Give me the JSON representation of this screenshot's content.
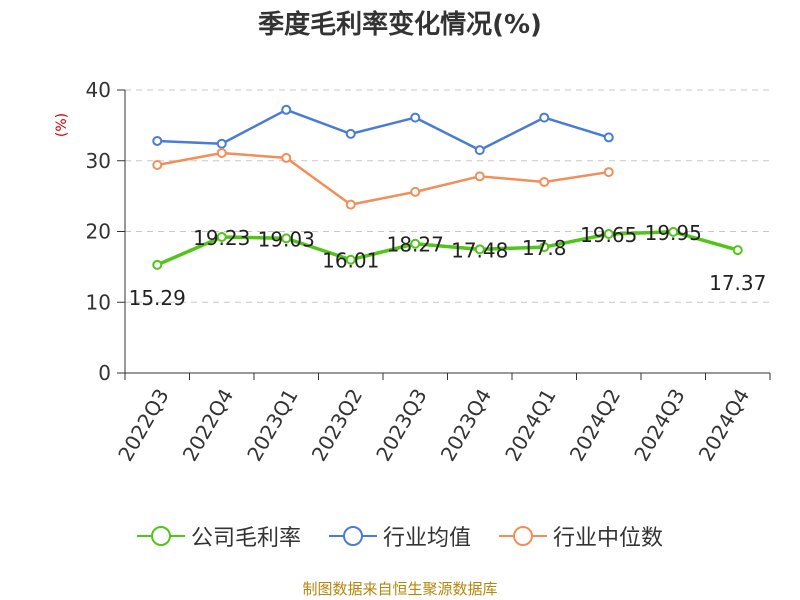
{
  "chart_data": {
    "type": "line",
    "title": "季度毛利率变化情况(%)",
    "ylabel": "(%)",
    "ylim": [
      0,
      40
    ],
    "yticks": [
      0,
      10,
      20,
      30,
      40
    ],
    "grid": true,
    "legend_position": "bottom",
    "categories": [
      "2022Q3",
      "2022Q4",
      "2023Q1",
      "2023Q2",
      "2023Q3",
      "2023Q4",
      "2024Q1",
      "2024Q2",
      "2024Q3",
      "2024Q4"
    ],
    "series": [
      {
        "name": "公司毛利率",
        "color": "#52c41a",
        "values": [
          15.29,
          19.23,
          19.03,
          16.01,
          18.27,
          17.48,
          17.8,
          19.65,
          19.95,
          17.37
        ],
        "labels": [
          "15.29",
          "19.23",
          "19.03",
          "16.01",
          "18.27",
          "17.48",
          "17.8",
          "19.65",
          "19.95",
          "17.37"
        ]
      },
      {
        "name": "行业均值",
        "color": "#4a7bd8",
        "values": [
          32.8,
          32.4,
          37.2,
          33.8,
          36.1,
          31.5,
          36.1,
          33.3,
          null,
          null
        ]
      },
      {
        "name": "行业中位数",
        "color": "#f28e5a",
        "values": [
          29.4,
          31.1,
          30.4,
          23.8,
          25.6,
          27.8,
          27.0,
          28.4,
          null,
          null
        ]
      }
    ]
  },
  "source_text": "制图数据来自恒生聚源数据库"
}
